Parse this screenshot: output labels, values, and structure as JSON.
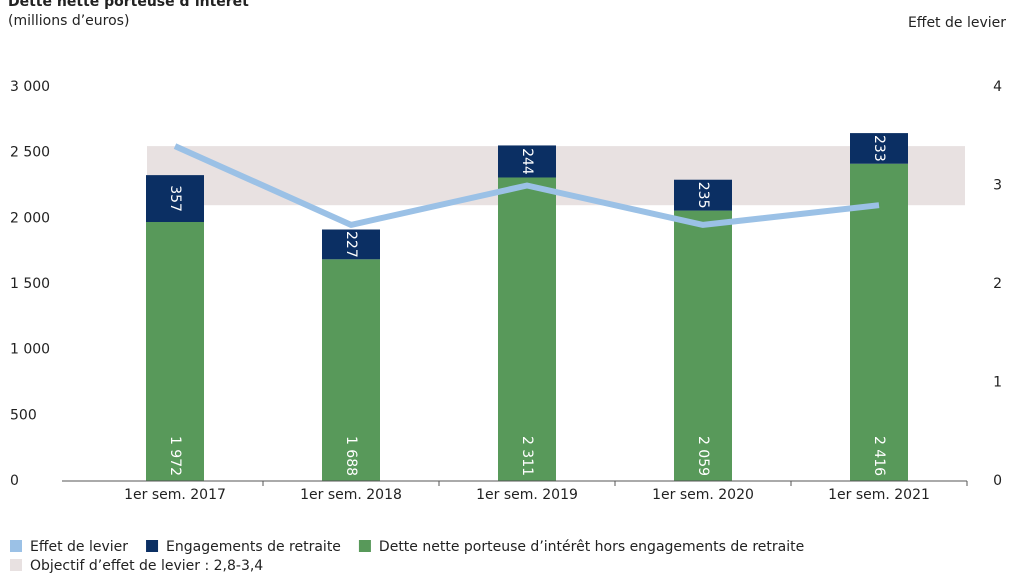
{
  "chart_data": {
    "type": "bar",
    "title": "Dette nette porteuse d’intérêt",
    "subtitle": "(millions d’euros)",
    "y2_label": "Effet de levier",
    "categories": [
      "1er sem. 2017",
      "1er sem. 2018",
      "1er sem. 2019",
      "1er sem. 2020",
      "1er sem. 2021"
    ],
    "series": [
      {
        "name": "Dette nette porteuse d’intérêt hors engagements de retraite",
        "type": "bar",
        "color": "#58995a",
        "values": [
          1972,
          1688,
          2311,
          2059,
          2416
        ],
        "value_labels": [
          "1 972",
          "1 688",
          "2 311",
          "2 059",
          "2 416"
        ]
      },
      {
        "name": "Engagements de retraite",
        "type": "bar",
        "color": "#0b2f63",
        "values": [
          357,
          227,
          244,
          235,
          233
        ]
      },
      {
        "name": "Effet de levier",
        "type": "line",
        "axis": "y2",
        "color": "#9bc1e6",
        "values": [
          3.4,
          2.6,
          3.0,
          2.6,
          2.8
        ]
      }
    ],
    "target_band": {
      "name": "Objectif d’effet de levier : 2,8-3,4",
      "axis": "y2",
      "range": [
        2.8,
        3.4
      ],
      "color": "#e8e1e1"
    },
    "stacked": true,
    "ylim": [
      0,
      3000
    ],
    "yticks": [
      0,
      500,
      {
        "value": 1000,
        "label": "1 000"
      },
      {
        "value": 1500,
        "label": "1 500"
      },
      {
        "value": 2000,
        "label": "2 000"
      },
      {
        "value": 2500,
        "label": "2 500"
      },
      {
        "value": 3000,
        "label": "3 000"
      }
    ],
    "y2lim": [
      0,
      4
    ],
    "y2ticks": [
      0,
      1,
      2,
      3,
      4
    ]
  }
}
